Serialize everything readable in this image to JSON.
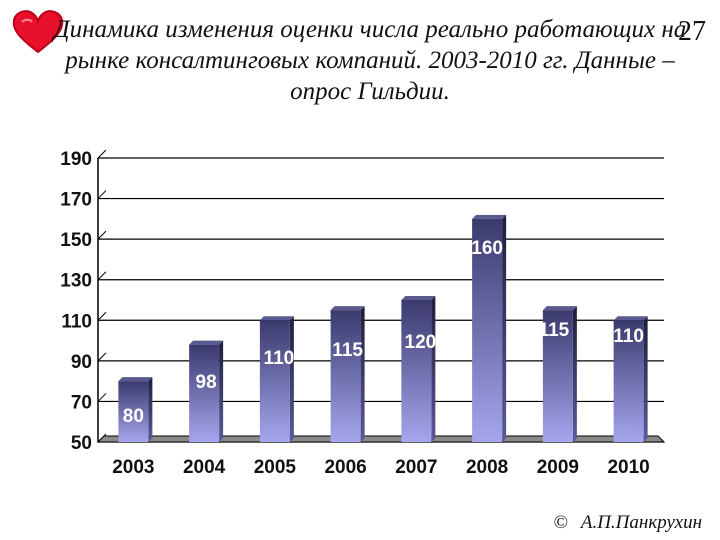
{
  "slide": {
    "title": "Динамика изменения оценки числа реально работающих на рынке консалтинговых компаний. 2003-2010 гг. Данные – опрос Гильдии.",
    "number": "27",
    "footer_symbol": "©",
    "footer_author": "А.П.Панкрухин"
  },
  "colors": {
    "heart": "#e8102a",
    "bar_top": "#3a3a6e",
    "bar_bottom": "#a6a6ee"
  },
  "chart_data": {
    "type": "bar",
    "categories": [
      "2003",
      "2004",
      "2005",
      "2006",
      "2007",
      "2008",
      "2009",
      "2010"
    ],
    "values": [
      80,
      98,
      110,
      115,
      120,
      160,
      115,
      110
    ],
    "data_labels": [
      "80",
      "98",
      "110",
      "115",
      "120",
      "160",
      "115",
      "110"
    ],
    "title": "",
    "xlabel": "",
    "ylabel": "",
    "ylim": [
      50,
      190
    ],
    "yticks": [
      "50",
      "70",
      "90",
      "110",
      "130",
      "150",
      "170",
      "190"
    ],
    "grid": true,
    "legend": "none"
  }
}
